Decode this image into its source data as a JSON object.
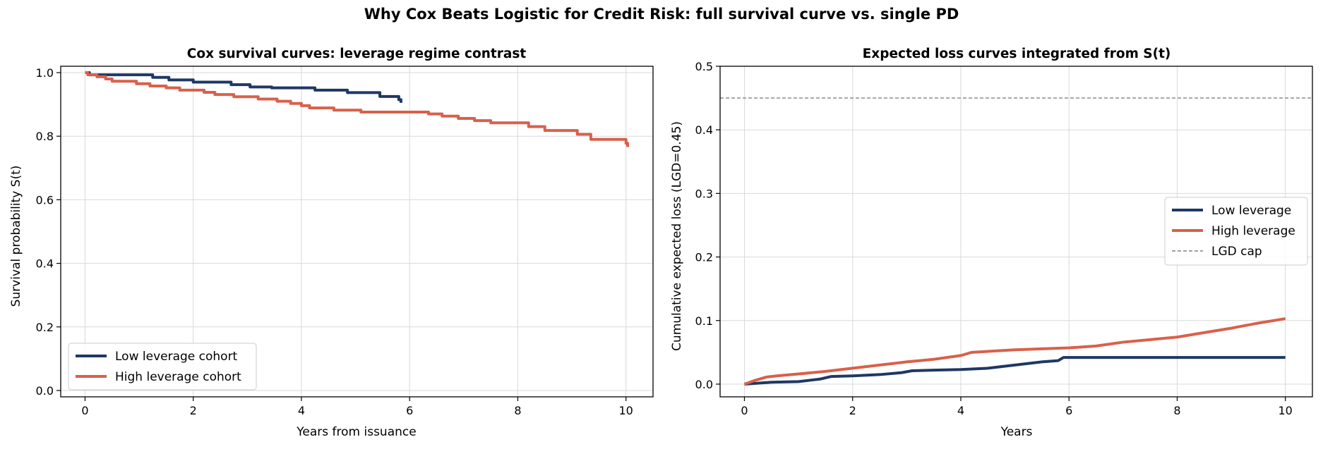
{
  "figure": {
    "title": "Why Cox Beats Logistic for Credit Risk: full survival curve vs. single PD",
    "colors": {
      "low": "#1f3864",
      "high": "#d9604a",
      "cap": "#808080"
    }
  },
  "chart_data": [
    {
      "type": "line",
      "title": "Cox survival curves: leverage regime contrast",
      "xlabel": "Years from issuance",
      "ylabel": "Survival probability S(t)",
      "xlim": [
        -0.45,
        10.5
      ],
      "ylim": [
        -0.02,
        1.02
      ],
      "xticks": [
        0,
        2,
        4,
        6,
        8,
        10
      ],
      "yticks": [
        0.0,
        0.2,
        0.4,
        0.6,
        0.8,
        1.0
      ],
      "ytick_labels": [
        "0.0",
        "0.2",
        "0.4",
        "0.6",
        "0.8",
        "1.0"
      ],
      "grid": true,
      "legend_position": "lower-left",
      "step": true,
      "series": [
        {
          "name": "Low leverage cohort",
          "color": "#1f3864",
          "x": [
            0,
            0.08,
            1.1,
            1.25,
            1.55,
            2.0,
            2.7,
            3.05,
            3.45,
            4.25,
            4.85,
            5.45,
            5.8,
            5.84
          ],
          "y": [
            1.0,
            0.993,
            0.993,
            0.985,
            0.977,
            0.97,
            0.962,
            0.955,
            0.952,
            0.945,
            0.937,
            0.925,
            0.915,
            0.905
          ]
        },
        {
          "name": "High leverage cohort",
          "color": "#d9604a",
          "x": [
            0,
            0.05,
            0.22,
            0.38,
            0.5,
            0.95,
            1.2,
            1.5,
            1.75,
            2.2,
            2.4,
            2.75,
            3.2,
            3.55,
            3.8,
            4.0,
            4.15,
            4.6,
            5.1,
            6.35,
            6.6,
            6.9,
            7.2,
            7.5,
            8.2,
            8.5,
            9.1,
            9.35,
            10.0,
            10.03
          ],
          "y": [
            1.0,
            0.993,
            0.987,
            0.98,
            0.973,
            0.965,
            0.958,
            0.952,
            0.945,
            0.938,
            0.931,
            0.924,
            0.917,
            0.91,
            0.903,
            0.896,
            0.889,
            0.882,
            0.876,
            0.87,
            0.863,
            0.856,
            0.849,
            0.842,
            0.83,
            0.818,
            0.806,
            0.79,
            0.778,
            0.766
          ]
        }
      ]
    },
    {
      "type": "line",
      "title": "Expected loss curves integrated from S(t)",
      "xlabel": "Years",
      "ylabel": "Cumulative expected loss (LGD=0.45)",
      "xlim": [
        -0.45,
        10.5
      ],
      "ylim": [
        -0.02,
        0.5
      ],
      "xticks": [
        0,
        2,
        4,
        6,
        8,
        10
      ],
      "yticks": [
        0.0,
        0.1,
        0.2,
        0.3,
        0.4,
        0.5
      ],
      "ytick_labels": [
        "0.0",
        "0.1",
        "0.2",
        "0.3",
        "0.4",
        "0.5"
      ],
      "grid": true,
      "legend_position": "center-right",
      "series": [
        {
          "name": "Low leverage",
          "color": "#1f3864",
          "x": [
            0,
            0.5,
            1.0,
            1.2,
            1.4,
            1.6,
            2.0,
            2.5,
            2.9,
            3.1,
            3.5,
            4.0,
            4.5,
            5.0,
            5.5,
            5.8,
            5.9,
            7.0,
            8.0,
            9.0,
            10.0
          ],
          "y": [
            0.0,
            0.003,
            0.004,
            0.006,
            0.008,
            0.012,
            0.013,
            0.015,
            0.018,
            0.021,
            0.022,
            0.023,
            0.025,
            0.03,
            0.035,
            0.037,
            0.042,
            0.042,
            0.042,
            0.042,
            0.042
          ]
        },
        {
          "name": "High leverage",
          "color": "#d9604a",
          "x": [
            0,
            0.2,
            0.4,
            0.6,
            1.0,
            1.5,
            2.0,
            2.5,
            3.0,
            3.5,
            4.0,
            4.2,
            5.0,
            6.0,
            6.5,
            7.0,
            7.5,
            8.0,
            8.5,
            9.0,
            9.5,
            10.0
          ],
          "y": [
            0.0,
            0.006,
            0.011,
            0.013,
            0.016,
            0.02,
            0.025,
            0.03,
            0.035,
            0.039,
            0.045,
            0.05,
            0.054,
            0.057,
            0.06,
            0.066,
            0.07,
            0.074,
            0.081,
            0.088,
            0.096,
            0.103
          ]
        },
        {
          "name": "LGD cap",
          "color": "#808080",
          "dashed": true,
          "hline": 0.45
        }
      ]
    }
  ]
}
